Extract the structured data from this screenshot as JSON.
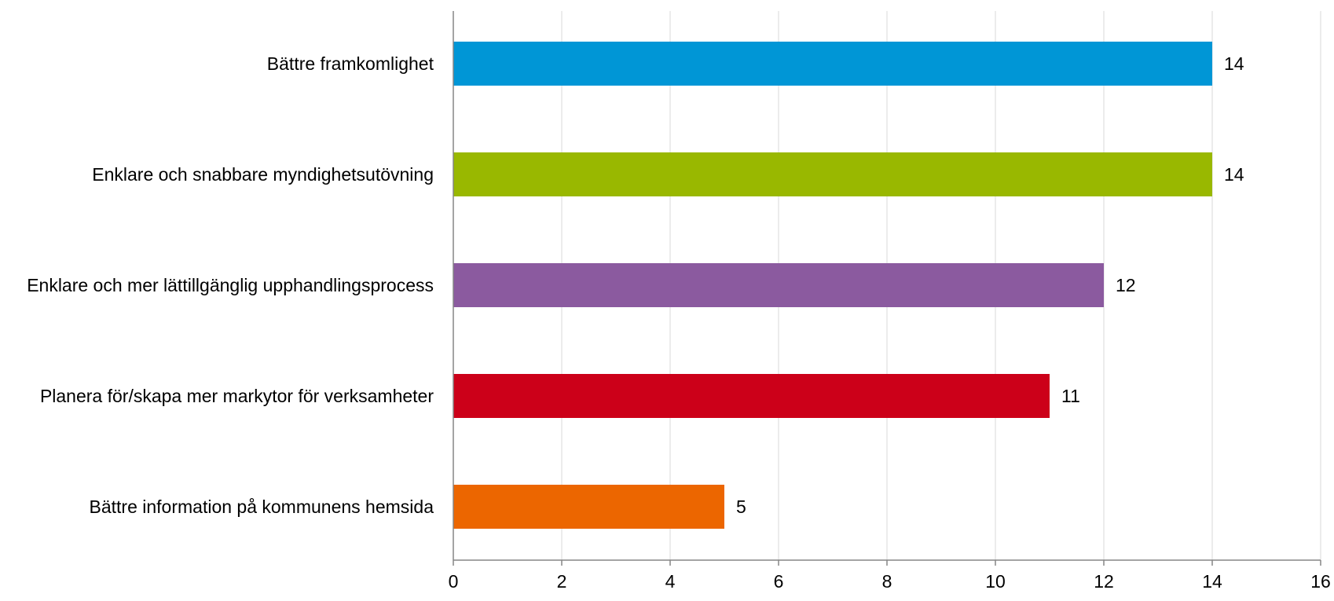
{
  "chart_data": {
    "type": "bar",
    "orientation": "horizontal",
    "title": "",
    "xlabel": "",
    "ylabel": "",
    "categories": [
      "Bättre framkomlighet",
      "Enklare och snabbare myndighetsutövning",
      "Enklare och mer lättillgänglig upphandlingsprocess",
      "Planera för/skapa mer markytor för verksamheter",
      "Bättre information på kommunens hemsida"
    ],
    "values": [
      14,
      14,
      12,
      11,
      5
    ],
    "value_labels": [
      "14",
      "14",
      "12",
      "11",
      "5"
    ],
    "colors": [
      "#0096d6",
      "#99b800",
      "#8b5a9f",
      "#cc0019",
      "#ec6600"
    ],
    "xlim": [
      0,
      16
    ],
    "x_ticks": [
      "0",
      "2",
      "4",
      "6",
      "8",
      "10",
      "12",
      "14",
      "16"
    ],
    "grid": "vertical",
    "legend": "none"
  }
}
